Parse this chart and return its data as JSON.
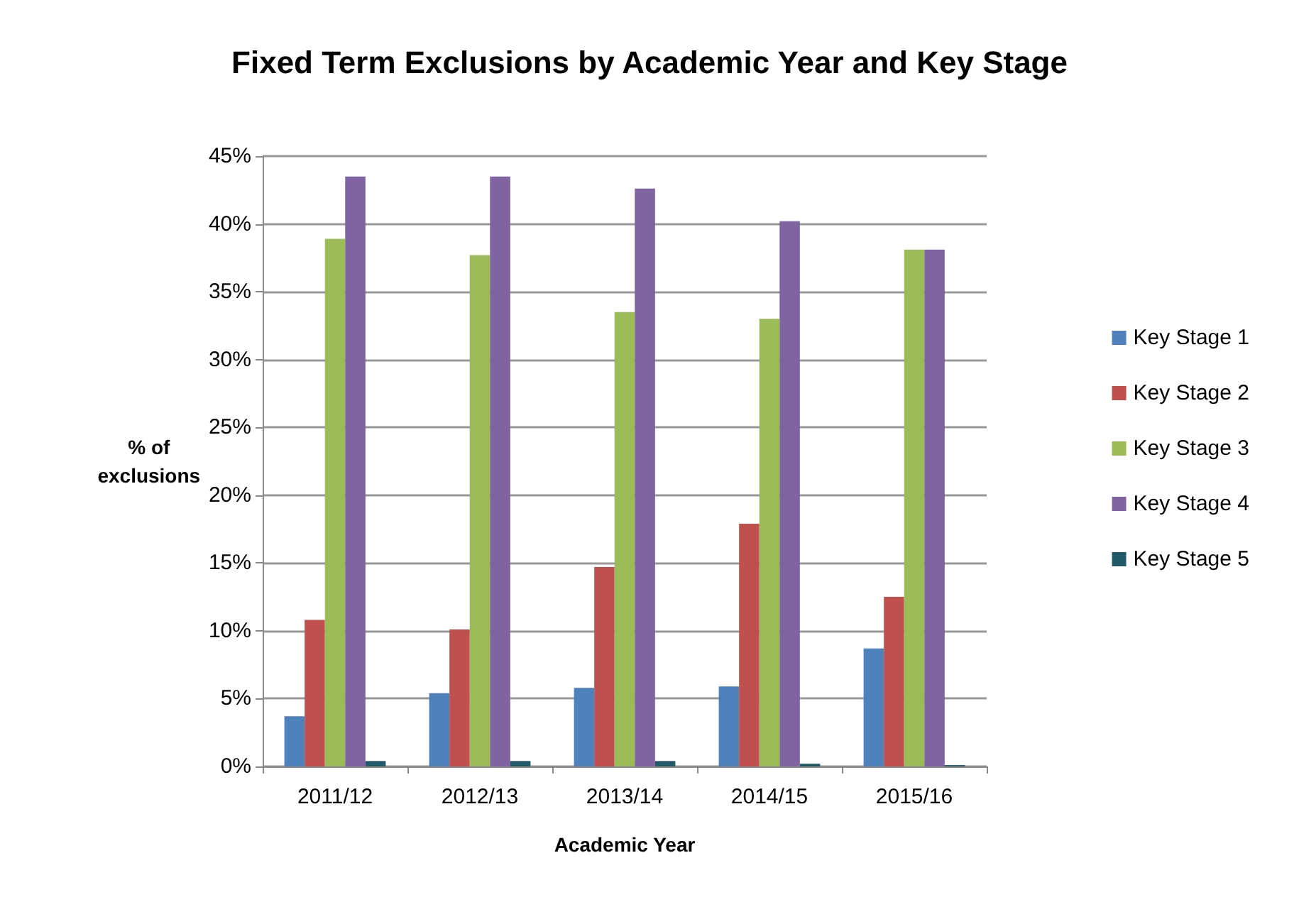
{
  "chart_data": {
    "type": "bar",
    "title": "Fixed Term Exclusions by Academic Year and Key Stage",
    "xlabel": "Academic Year",
    "ylabel": "% of\nexclusions",
    "categories": [
      "2011/12",
      "2012/13",
      "2013/14",
      "2014/15",
      "2015/16"
    ],
    "series": [
      {
        "name": "Key Stage 1",
        "color": "#4f81bd",
        "values": [
          3.7,
          5.4,
          5.8,
          5.9,
          8.7
        ]
      },
      {
        "name": "Key Stage 2",
        "color": "#c0504d",
        "values": [
          10.8,
          10.1,
          14.7,
          17.9,
          12.5
        ]
      },
      {
        "name": "Key Stage 3",
        "color": "#9bbb59",
        "values": [
          38.9,
          37.7,
          33.5,
          33.0,
          38.1
        ]
      },
      {
        "name": "Key Stage 4",
        "color": "#8064a2",
        "values": [
          43.5,
          43.5,
          42.6,
          40.2,
          38.1
        ]
      },
      {
        "name": "Key Stage 5",
        "color": "#215968",
        "values": [
          0.4,
          0.4,
          0.4,
          0.2,
          0.1
        ]
      }
    ],
    "ylim": [
      0,
      45
    ],
    "yticks": [
      {
        "value": 0,
        "label": "0%"
      },
      {
        "value": 5,
        "label": "5%"
      },
      {
        "value": 10,
        "label": "10%"
      },
      {
        "value": 15,
        "label": "15%"
      },
      {
        "value": 20,
        "label": "20%"
      },
      {
        "value": 25,
        "label": "25%"
      },
      {
        "value": 30,
        "label": "30%"
      },
      {
        "value": 35,
        "label": "35%"
      },
      {
        "value": 40,
        "label": "40%"
      },
      {
        "value": 45,
        "label": "45%"
      }
    ],
    "grid": "y",
    "legend": "right"
  }
}
